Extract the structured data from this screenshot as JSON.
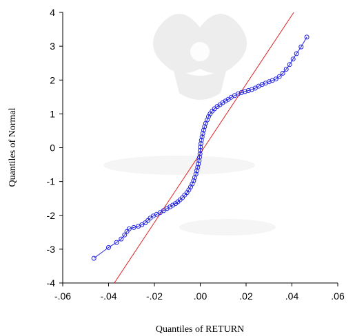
{
  "chart_data": {
    "type": "scatter",
    "title": "",
    "xlabel": "Quantiles of RETURN",
    "ylabel": "Quantiles of Normal",
    "xlim": [
      -0.06,
      0.06
    ],
    "ylim": [
      -4,
      4
    ],
    "x_ticks": [
      {
        "value": -0.06,
        "label": "-.06"
      },
      {
        "value": -0.04,
        "label": "-.04"
      },
      {
        "value": -0.02,
        "label": "-.02"
      },
      {
        "value": 0.0,
        "label": ".00"
      },
      {
        "value": 0.02,
        "label": ".02"
      },
      {
        "value": 0.04,
        "label": ".04"
      },
      {
        "value": 0.06,
        "label": ".06"
      }
    ],
    "y_ticks": [
      {
        "value": 4,
        "label": "4"
      },
      {
        "value": 3,
        "label": "3"
      },
      {
        "value": 2,
        "label": "2"
      },
      {
        "value": 1,
        "label": "1"
      },
      {
        "value": 0,
        "label": "0"
      },
      {
        "value": -1,
        "label": "-1"
      },
      {
        "value": -2,
        "label": "-2"
      },
      {
        "value": -3,
        "label": "-3"
      },
      {
        "value": -4,
        "label": "-4"
      }
    ],
    "grid": false,
    "reference_line": {
      "x": [
        -0.0375,
        0.0408
      ],
      "y": [
        -4.0,
        4.0
      ],
      "color": "#e02020"
    },
    "series": [
      {
        "color": "#2020e0",
        "marker": "open-circle",
        "points": [
          [
            -0.0464,
            -3.27
          ],
          [
            -0.04,
            -2.95
          ],
          [
            -0.0365,
            -2.8
          ],
          [
            -0.0345,
            -2.7
          ],
          [
            -0.033,
            -2.58
          ],
          [
            -0.032,
            -2.48
          ],
          [
            -0.031,
            -2.4
          ],
          [
            -0.029,
            -2.36
          ],
          [
            -0.027,
            -2.32
          ],
          [
            -0.0255,
            -2.28
          ],
          [
            -0.024,
            -2.22
          ],
          [
            -0.0228,
            -2.15
          ],
          [
            -0.0218,
            -2.08
          ],
          [
            -0.0205,
            -2.02
          ],
          [
            -0.019,
            -1.97
          ],
          [
            -0.0175,
            -1.92
          ],
          [
            -0.016,
            -1.86
          ],
          [
            -0.0145,
            -1.8
          ],
          [
            -0.0132,
            -1.75
          ],
          [
            -0.012,
            -1.7
          ],
          [
            -0.0108,
            -1.65
          ],
          [
            -0.0098,
            -1.6
          ],
          [
            -0.0088,
            -1.54
          ],
          [
            -0.0078,
            -1.48
          ],
          [
            -0.0068,
            -1.4
          ],
          [
            -0.0058,
            -1.33
          ],
          [
            -0.005,
            -1.25
          ],
          [
            -0.0042,
            -1.16
          ],
          [
            -0.0035,
            -1.07
          ],
          [
            -0.0029,
            -0.98
          ],
          [
            -0.0024,
            -0.88
          ],
          [
            -0.0019,
            -0.78
          ],
          [
            -0.0015,
            -0.68
          ],
          [
            -0.0011,
            -0.58
          ],
          [
            -0.0008,
            -0.48
          ],
          [
            -0.0005,
            -0.38
          ],
          [
            -0.0003,
            -0.28
          ],
          [
            -0.0001,
            -0.18
          ],
          [
            0.0,
            -0.08
          ],
          [
            0.0001,
            0.02
          ],
          [
            0.0003,
            0.12
          ],
          [
            0.0005,
            0.22
          ],
          [
            0.0008,
            0.32
          ],
          [
            0.0011,
            0.42
          ],
          [
            0.0015,
            0.52
          ],
          [
            0.0019,
            0.62
          ],
          [
            0.0024,
            0.72
          ],
          [
            0.003,
            0.82
          ],
          [
            0.0036,
            0.92
          ],
          [
            0.0043,
            1.0
          ],
          [
            0.0052,
            1.08
          ],
          [
            0.0062,
            1.15
          ],
          [
            0.0074,
            1.22
          ],
          [
            0.0086,
            1.27
          ],
          [
            0.0098,
            1.33
          ],
          [
            0.011,
            1.38
          ],
          [
            0.0122,
            1.43
          ],
          [
            0.0135,
            1.49
          ],
          [
            0.015,
            1.54
          ],
          [
            0.0165,
            1.59
          ],
          [
            0.018,
            1.63
          ],
          [
            0.0195,
            1.66
          ],
          [
            0.021,
            1.69
          ],
          [
            0.0225,
            1.72
          ],
          [
            0.024,
            1.76
          ],
          [
            0.0255,
            1.82
          ],
          [
            0.027,
            1.87
          ],
          [
            0.0285,
            1.91
          ],
          [
            0.03,
            1.95
          ],
          [
            0.0315,
            1.99
          ],
          [
            0.033,
            2.03
          ],
          [
            0.0345,
            2.1
          ],
          [
            0.036,
            2.2
          ],
          [
            0.0375,
            2.32
          ],
          [
            0.039,
            2.46
          ],
          [
            0.0405,
            2.62
          ],
          [
            0.042,
            2.78
          ],
          [
            0.044,
            2.98
          ],
          [
            0.0465,
            3.27
          ]
        ]
      }
    ]
  }
}
